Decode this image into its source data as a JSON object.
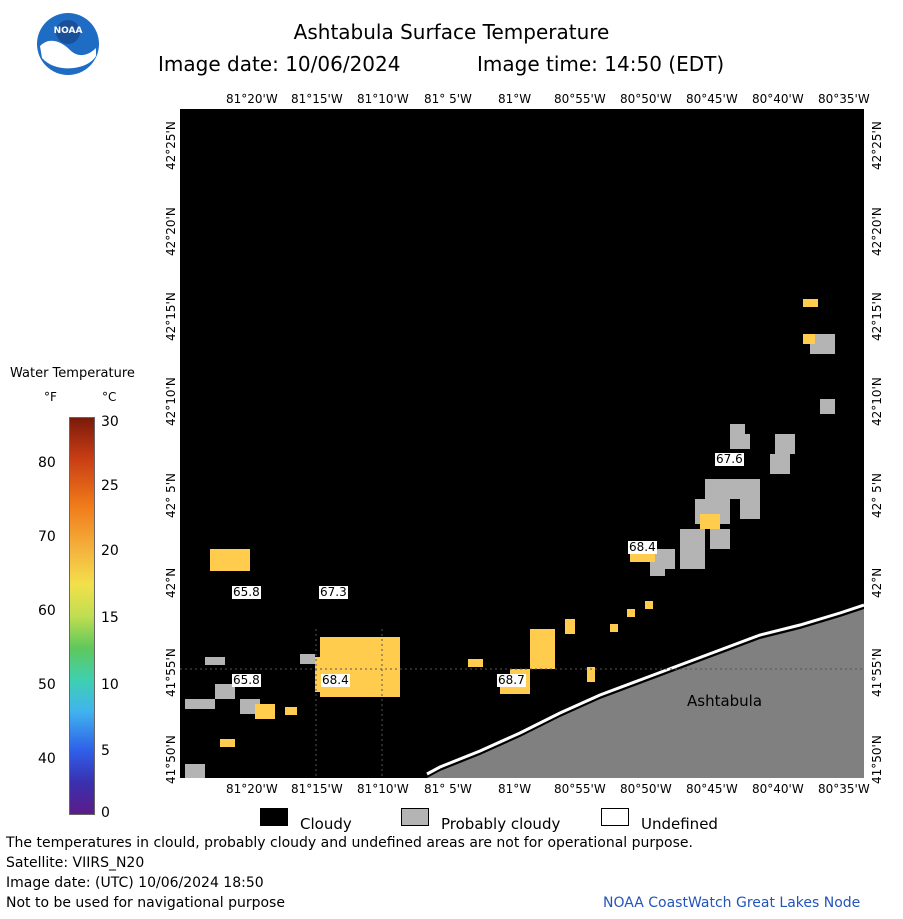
{
  "header": {
    "title": "Ashtabula Surface Temperature",
    "image_date": "Image date: 10/06/2024",
    "image_time": "Image time: 14:50 (EDT)",
    "logo_text": "NOAA"
  },
  "map": {
    "lon_labels": [
      "81°20'W",
      "81°15'W",
      "81°10'W",
      "81° 5'W",
      "81°W",
      "80°55'W",
      "80°50'W",
      "80°45'W",
      "80°40'W",
      "80°35'W"
    ],
    "lat_labels": [
      "42°25'N",
      "42°20'N",
      "42°15'N",
      "42°10'N",
      "42° 5'N",
      "42°N",
      "41°55'N",
      "41°50'N"
    ],
    "place_label": "Ashtabula",
    "temperature_labels": [
      "65.8",
      "67.3",
      "68.4",
      "65.8",
      "68.7",
      "68.4",
      "67.6"
    ],
    "colors": {
      "cloudy": "#000000",
      "probably_cloudy": "#b4b4b4",
      "land": "#808080",
      "warm": "#ffcc4d"
    }
  },
  "scale": {
    "title": "Water Temperature",
    "unit_f": "°F",
    "unit_c": "°C",
    "f_ticks": [
      "80",
      "70",
      "60",
      "50",
      "40"
    ],
    "c_ticks": [
      "30",
      "25",
      "20",
      "15",
      "10",
      "5",
      "0"
    ]
  },
  "legend": {
    "cloudy": "Cloudy",
    "probably_cloudy": "Probably cloudy",
    "undefined": "Undefined"
  },
  "footer": {
    "notice": "The temperatures in clould, probably cloudy and undefined areas are not for operational purpose.",
    "satellite": "Satellite: VIIRS_N20",
    "utc_date": "Image date: (UTC) 10/06/2024  18:50",
    "nav_warning": "Not to be used for navigational purpose",
    "credit": "NOAA CoastWatch Great Lakes Node"
  }
}
